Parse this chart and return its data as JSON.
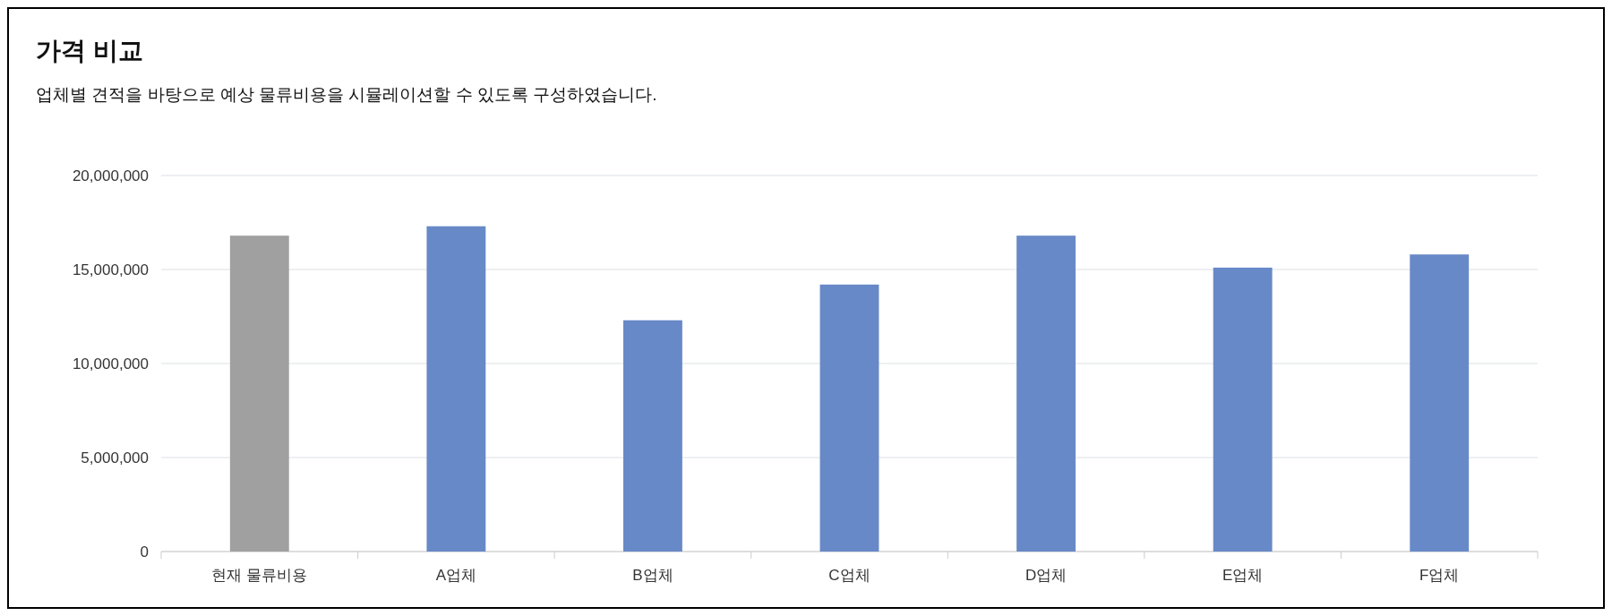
{
  "chart_data": {
    "type": "bar",
    "title": "가격 비교",
    "subtitle": "업체별 견적을 바탕으로 예상 물류비용을 시뮬레이션할 수 있도록 구성하였습니다.",
    "categories": [
      "현재 물류비용",
      "A업체",
      "B업체",
      "C업체",
      "D업체",
      "E업체",
      "F업체"
    ],
    "values": [
      16800000,
      17300000,
      12300000,
      14200000,
      16800000,
      15100000,
      15800000
    ],
    "colors": [
      "#a0a0a0",
      "#6889c7",
      "#6889c7",
      "#6889c7",
      "#6889c7",
      "#6889c7",
      "#6889c7"
    ],
    "ylim": [
      0,
      20000000
    ],
    "yticks": [
      {
        "value": 0,
        "label": "0"
      },
      {
        "value": 5000000,
        "label": "5,000,000"
      },
      {
        "value": 10000000,
        "label": "10,000,000"
      },
      {
        "value": 15000000,
        "label": "15,000,000"
      },
      {
        "value": 20000000,
        "label": "20,000,000"
      }
    ],
    "grid": "y"
  }
}
